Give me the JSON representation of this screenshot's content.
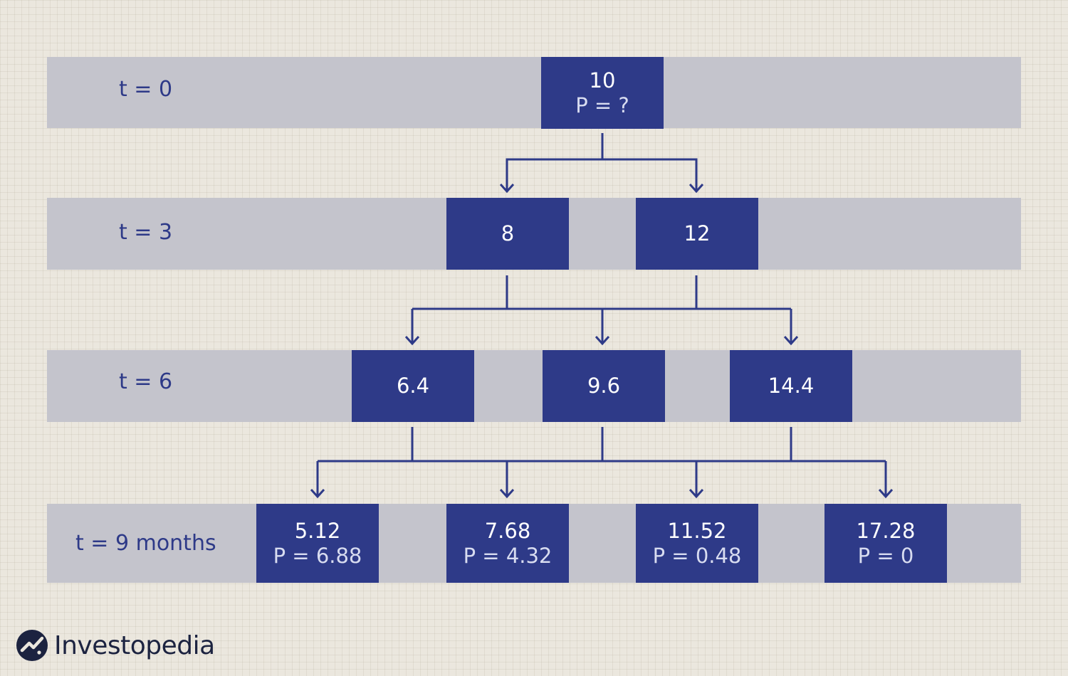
{
  "colors": {
    "background": "#ebe7de",
    "band": "#c4c4cc",
    "node": "#2e3a88",
    "node_text": "#ffffff",
    "line": "#2e3a88",
    "label": "#2e3a88"
  },
  "rows": [
    {
      "label": "t = 0"
    },
    {
      "label": "t = 3"
    },
    {
      "label": "t = 6"
    },
    {
      "label": "t = 9 months"
    }
  ],
  "nodes": {
    "n0": {
      "value": "10",
      "p": "P = ?"
    },
    "n3a": {
      "value": "8"
    },
    "n3b": {
      "value": "12"
    },
    "n6a": {
      "value": "6.4"
    },
    "n6b": {
      "value": "9.6"
    },
    "n6c": {
      "value": "14.4"
    },
    "n9a": {
      "value": "5.12",
      "p": "P = 6.88"
    },
    "n9b": {
      "value": "7.68",
      "p": "P = 4.32"
    },
    "n9c": {
      "value": "11.52",
      "p": "P = 0.48"
    },
    "n9d": {
      "value": "17.28",
      "p": "P = 0"
    }
  },
  "logo": {
    "text": "Investopedia",
    "icon": "investopedia-logo-icon"
  }
}
